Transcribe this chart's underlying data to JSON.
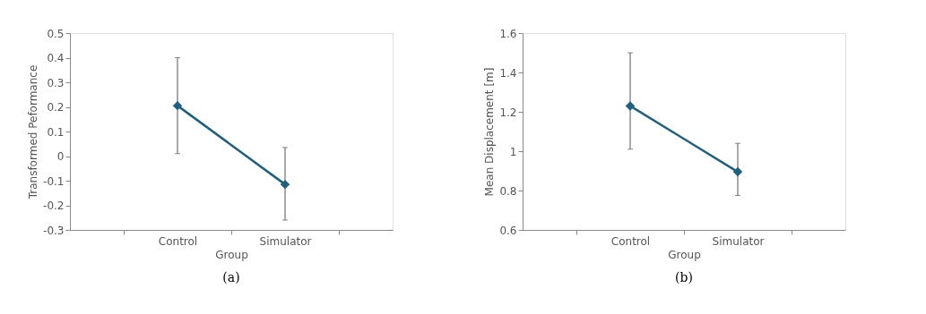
{
  "chart_data": [
    {
      "type": "line",
      "categories": [
        "Control",
        "Simulator"
      ],
      "xlabel": "Group",
      "ylabel": "Transformed Peformance",
      "series": [
        {
          "color": "#1f5f7f",
          "values": [
            0.205,
            -0.115
          ],
          "errors": [
            [
              0.01,
              0.4
            ],
            [
              -0.26,
              0.035
            ]
          ]
        }
      ],
      "ylim": [
        -0.3,
        0.5
      ],
      "yticks": [
        -0.3,
        -0.2,
        -0.1,
        0,
        0.1,
        0.2,
        0.3,
        0.4,
        0.5
      ],
      "marker": "diamond",
      "line_style": "solid",
      "grid": false,
      "annotations": [
        "(a)"
      ]
    },
    {
      "type": "line",
      "categories": [
        "Control",
        "Simulator"
      ],
      "xlabel": "Group",
      "ylabel": "Mean Displacement [m]",
      "series": [
        {
          "color": "#1f5f7f",
          "values": [
            1.23,
            0.895
          ],
          "errors": [
            [
              1.01,
              1.5
            ],
            [
              0.775,
              1.04
            ]
          ]
        }
      ],
      "ylim": [
        0.6,
        1.6
      ],
      "yticks": [
        0.6,
        0.8,
        1,
        1.2,
        1.4,
        1.6
      ],
      "marker": "diamond",
      "line_style": "solid",
      "grid": false,
      "annotations": [
        "(b)"
      ]
    }
  ]
}
